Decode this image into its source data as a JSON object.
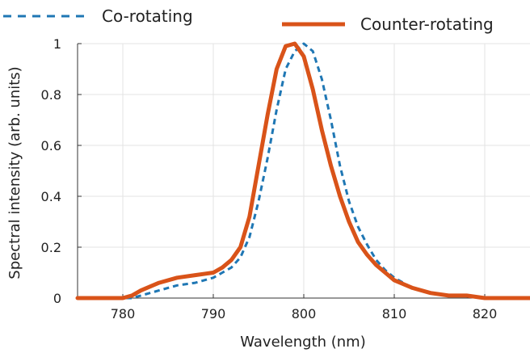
{
  "chart_data": {
    "type": "line",
    "xlabel": "Wavelength (nm)",
    "ylabel": "Spectral intensity (arb. units)",
    "xlim": [
      775,
      825
    ],
    "ylim": [
      0,
      1
    ],
    "x_ticks": [
      780,
      790,
      800,
      810,
      820
    ],
    "y_ticks": [
      0,
      0.2,
      0.4,
      0.6,
      0.8,
      1
    ],
    "x_tick_labels": [
      "780",
      "790",
      "800",
      "810",
      "820"
    ],
    "y_tick_labels": [
      "0",
      "0.2",
      "0.4",
      "0.6",
      "0.8",
      "1"
    ],
    "grid": true,
    "legend_position": "top",
    "series": [
      {
        "name": "Co-rotating",
        "style": "dashed",
        "color": "#1f77b4",
        "x": [
          775,
          778,
          780,
          781,
          782,
          784,
          786,
          788,
          790,
          791,
          792,
          793,
          794,
          795,
          796,
          797,
          798,
          799,
          800,
          801,
          802,
          803,
          804,
          805,
          806,
          807,
          808,
          809,
          810,
          812,
          814,
          816,
          818,
          820,
          822,
          825
        ],
        "y": [
          0.0,
          0.0,
          0.0,
          0.0,
          0.01,
          0.03,
          0.05,
          0.06,
          0.08,
          0.1,
          0.12,
          0.16,
          0.24,
          0.38,
          0.55,
          0.74,
          0.9,
          0.97,
          1.0,
          0.97,
          0.86,
          0.7,
          0.52,
          0.38,
          0.28,
          0.21,
          0.15,
          0.11,
          0.08,
          0.04,
          0.02,
          0.01,
          0.01,
          0.0,
          0.0,
          0.0
        ]
      },
      {
        "name": "Counter-rotating",
        "style": "solid",
        "color": "#d95319",
        "x": [
          775,
          778,
          780,
          781,
          782,
          784,
          786,
          788,
          790,
          791,
          792,
          793,
          794,
          795,
          796,
          797,
          798,
          799,
          800,
          801,
          802,
          803,
          804,
          805,
          806,
          807,
          808,
          809,
          810,
          812,
          814,
          816,
          818,
          820,
          822,
          825
        ],
        "y": [
          0.0,
          0.0,
          0.0,
          0.01,
          0.03,
          0.06,
          0.08,
          0.09,
          0.1,
          0.12,
          0.15,
          0.2,
          0.32,
          0.52,
          0.72,
          0.9,
          0.99,
          1.0,
          0.95,
          0.82,
          0.66,
          0.52,
          0.4,
          0.3,
          0.22,
          0.17,
          0.13,
          0.1,
          0.07,
          0.04,
          0.02,
          0.01,
          0.01,
          0.0,
          0.0,
          0.0
        ]
      }
    ]
  }
}
